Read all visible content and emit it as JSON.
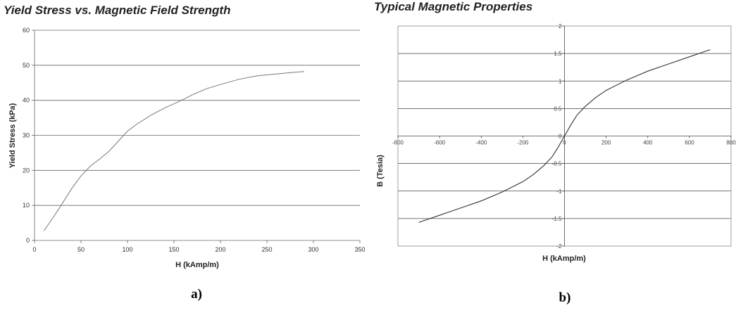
{
  "chart_data": [
    {
      "type": "line",
      "title": "Yield Stress vs. Magnetic Field Strength",
      "xlabel": "H (kAmp/m)",
      "ylabel": "Yield Stress (kPa)",
      "xlim": [
        0,
        350
      ],
      "ylim": [
        0,
        60
      ],
      "xticks": [
        "0",
        "50",
        "100",
        "150",
        "200",
        "250",
        "300",
        "350"
      ],
      "yticks": [
        "0",
        "10",
        "20",
        "30",
        "40",
        "50",
        "60"
      ],
      "grid": "horizontal",
      "x": [
        10,
        20,
        30,
        40,
        50,
        60,
        70,
        80,
        90,
        100,
        110,
        125,
        140,
        155,
        170,
        185,
        200,
        220,
        240,
        260,
        280,
        290
      ],
      "y": [
        2.7,
        6.5,
        10.6,
        14.8,
        18.4,
        21.2,
        23.2,
        25.4,
        28.3,
        31.2,
        33.2,
        35.7,
        37.8,
        39.6,
        41.6,
        43.3,
        44.5,
        46,
        47,
        47.5,
        48,
        48.2
      ],
      "panel_label": "a)"
    },
    {
      "type": "line",
      "title": "Typical Magnetic Properties",
      "xlabel": "H (kAmp/m)",
      "ylabel": "B (Tesia)",
      "xlim": [
        -800,
        800
      ],
      "ylim": [
        -2,
        2
      ],
      "xticks": [
        "-800",
        "-600",
        "-400",
        "-200",
        "0",
        "200",
        "400",
        "600",
        "800"
      ],
      "yticks": [
        "2",
        "1.5",
        "1",
        "0.5",
        "0",
        "-0.5",
        "-1",
        "-1.5",
        "-2"
      ],
      "grid": "horizontal",
      "x": [
        -700,
        -600,
        -500,
        -400,
        -300,
        -200,
        -150,
        -100,
        -60,
        -30,
        0,
        30,
        60,
        100,
        150,
        200,
        300,
        400,
        500,
        600,
        700
      ],
      "y": [
        -1.57,
        -1.44,
        -1.31,
        -1.18,
        -1.02,
        -0.83,
        -0.7,
        -0.54,
        -0.38,
        -0.2,
        0,
        0.2,
        0.38,
        0.54,
        0.7,
        0.83,
        1.02,
        1.18,
        1.31,
        1.44,
        1.57
      ],
      "panel_label": "b)"
    }
  ]
}
